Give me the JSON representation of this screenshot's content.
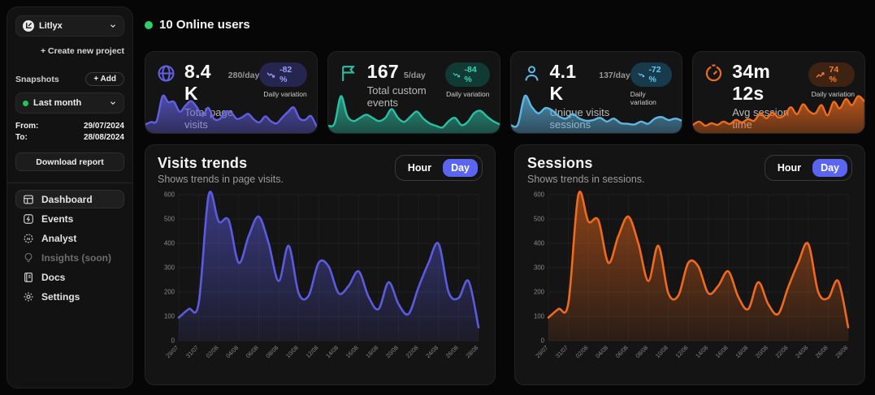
{
  "sidebar": {
    "project": {
      "name": "Litlyx"
    },
    "create_project_label": "+ Create new project",
    "snapshots": {
      "label": "Snapshots",
      "add_label": "+ Add",
      "selected": "Last month",
      "dot_color": "#22c55e"
    },
    "date_range": {
      "from_label": "From:",
      "from_value": "29/07/2024",
      "to_label": "To:",
      "to_value": "28/08/2024"
    },
    "download_label": "Download report",
    "nav": [
      {
        "label": "Dashboard",
        "icon": "dashboard-icon"
      },
      {
        "label": "Events",
        "icon": "events-icon"
      },
      {
        "label": "Analyst",
        "icon": "analyst-icon"
      },
      {
        "label": "Insights (soon)",
        "icon": "insights-icon"
      },
      {
        "label": "Docs",
        "icon": "docs-icon"
      },
      {
        "label": "Settings",
        "icon": "settings-icon"
      }
    ]
  },
  "header": {
    "online_text": "10 Online users",
    "online_color": "#2fd06b"
  },
  "stat_cards": [
    {
      "value": "8.4 K",
      "per_day": "280/day",
      "label": "Total page visits",
      "badge_text": "-82 %",
      "badge_trend": "down",
      "badge_caption": "Daily variation",
      "color": "#625fe0",
      "badge_bg": "#262550",
      "badge_fg": "#9a9df5",
      "spark": [
        15,
        22,
        26,
        95,
        78,
        79,
        51,
        68,
        81,
        64,
        39,
        62,
        31,
        30,
        51,
        49,
        31,
        36,
        45,
        29,
        21,
        38,
        24,
        18,
        35,
        51,
        63,
        32,
        28,
        39,
        9
      ]
    },
    {
      "value": "167",
      "per_day": "5/day",
      "label": "Total custom events",
      "badge_text": "-84 %",
      "badge_trend": "down",
      "badge_caption": "Daily variation",
      "color": "#2bbfa4",
      "badge_bg": "#103a33",
      "badge_fg": "#35d6b6",
      "spark": [
        10,
        16,
        85,
        35,
        22,
        30,
        38,
        30,
        22,
        30,
        52,
        30,
        20,
        34,
        46,
        28,
        16,
        10,
        6,
        22,
        30,
        12,
        20,
        42,
        48,
        34,
        22,
        14
      ]
    },
    {
      "value": "4.1 K",
      "per_day": "137/day",
      "label": "Unique visits sessions",
      "badge_text": "-72 %",
      "badge_trend": "down",
      "badge_caption": "Daily variation",
      "color": "#5fb6e3",
      "badge_bg": "#173b4d",
      "badge_fg": "#6cc6ee",
      "spark": [
        12,
        14,
        90,
        62,
        44,
        58,
        52,
        36,
        30,
        42,
        30,
        24,
        26,
        32,
        22,
        30,
        18,
        16,
        14,
        22,
        16,
        30,
        34,
        26,
        30,
        24
      ]
    },
    {
      "value": "34m 12s",
      "per_day": "",
      "label": "Avg session time",
      "badge_text": "74 %",
      "badge_trend": "up",
      "badge_caption": "Daily variation",
      "color": "#ee6c1d",
      "badge_bg": "#3f2312",
      "badge_fg": "#f6812a",
      "spark": [
        12,
        20,
        10,
        16,
        12,
        20,
        14,
        24,
        18,
        26,
        22,
        40,
        28,
        42,
        30,
        36,
        55,
        38,
        62,
        45,
        40,
        60,
        35,
        68,
        52,
        75,
        60,
        82,
        70
      ]
    }
  ],
  "panels": [
    {
      "title": "Visits trends",
      "subtitle": "Shows trends in page visits.",
      "toggle": {
        "hour": "Hour",
        "day": "Day",
        "active": "Day",
        "active_bg": "#5a65f1"
      }
    },
    {
      "title": "Sessions",
      "subtitle": "Shows trends in sessions.",
      "toggle": {
        "hour": "Hour",
        "day": "Day",
        "active": "Day",
        "active_bg": "#5a65f1"
      }
    }
  ],
  "chart_data": [
    {
      "type": "area",
      "title": "Visits trends",
      "x": [
        "29/07",
        "30/07",
        "31/07",
        "01/08",
        "02/08",
        "03/08",
        "04/08",
        "05/08",
        "06/08",
        "07/08",
        "08/08",
        "09/08",
        "10/08",
        "11/08",
        "12/08",
        "13/08",
        "14/08",
        "15/08",
        "16/08",
        "17/08",
        "18/08",
        "19/08",
        "20/08",
        "21/08",
        "22/08",
        "23/08",
        "24/08",
        "25/08",
        "26/08",
        "27/08",
        "28/08"
      ],
      "x_tick_labels": [
        "29/07",
        "31/07",
        "02/08",
        "04/08",
        "06/08",
        "08/08",
        "10/08",
        "12/08",
        "14/08",
        "16/08",
        "18/08",
        "20/08",
        "22/08",
        "24/08",
        "26/08",
        "28/08"
      ],
      "values": [
        95,
        130,
        155,
        600,
        490,
        495,
        320,
        430,
        510,
        400,
        245,
        390,
        195,
        185,
        320,
        305,
        195,
        225,
        285,
        180,
        130,
        240,
        150,
        110,
        220,
        320,
        398,
        200,
        175,
        245,
        55
      ],
      "ylim": [
        0,
        600
      ],
      "yticks": [
        0,
        100,
        200,
        300,
        400,
        500,
        600
      ],
      "xlabel": "",
      "ylabel": "",
      "grid": true,
      "legend": false,
      "line_color": "#5b5be0"
    },
    {
      "type": "area",
      "title": "Sessions",
      "x": [
        "29/07",
        "30/07",
        "31/07",
        "01/08",
        "02/08",
        "03/08",
        "04/08",
        "05/08",
        "06/08",
        "07/08",
        "08/08",
        "09/08",
        "10/08",
        "11/08",
        "12/08",
        "13/08",
        "14/08",
        "15/08",
        "16/08",
        "17/08",
        "18/08",
        "19/08",
        "20/08",
        "21/08",
        "22/08",
        "23/08",
        "24/08",
        "25/08",
        "26/08",
        "27/08",
        "28/08"
      ],
      "x_tick_labels": [
        "29/07",
        "31/07",
        "02/08",
        "04/08",
        "06/08",
        "08/08",
        "10/08",
        "12/08",
        "14/08",
        "16/08",
        "18/08",
        "20/08",
        "22/08",
        "24/08",
        "26/08",
        "28/08"
      ],
      "values": [
        95,
        130,
        155,
        600,
        490,
        495,
        320,
        430,
        510,
        400,
        245,
        390,
        195,
        185,
        320,
        305,
        195,
        225,
        285,
        180,
        130,
        240,
        150,
        110,
        220,
        320,
        398,
        200,
        175,
        245,
        55
      ],
      "ylim": [
        0,
        600
      ],
      "yticks": [
        0,
        100,
        200,
        300,
        400,
        500,
        600
      ],
      "xlabel": "",
      "ylabel": "",
      "grid": true,
      "legend": false,
      "line_color": "#f06a1e"
    }
  ]
}
